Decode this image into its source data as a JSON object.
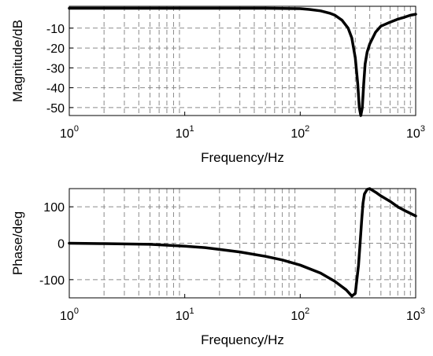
{
  "chart_data": [
    {
      "type": "line",
      "xlabel": "Frequency/Hz",
      "ylabel": "Magnitude/dB",
      "x_scale": "log",
      "xlim": [
        1,
        1000
      ],
      "ylim": [
        -54,
        1
      ],
      "x_ticks": [
        {
          "base": "10",
          "exp": "0"
        },
        {
          "base": "10",
          "exp": "1"
        },
        {
          "base": "10",
          "exp": "2"
        },
        {
          "base": "10",
          "exp": "3"
        }
      ],
      "y_ticks": [
        -10,
        -20,
        -30,
        -40,
        -50
      ],
      "grid": true,
      "series": [
        {
          "x": [
            1,
            10,
            50,
            100,
            120,
            150,
            180,
            200,
            230,
            260,
            280,
            300,
            315,
            325,
            335,
            345,
            355,
            365,
            380,
            400,
            450,
            500,
            600,
            700,
            800,
            900,
            1000
          ],
          "y": [
            0,
            0,
            0,
            -0.2,
            -0.6,
            -1.3,
            -2.5,
            -3.5,
            -6,
            -10,
            -15,
            -25,
            -38,
            -50,
            -54,
            -50,
            -38,
            -28,
            -22,
            -18,
            -12,
            -9,
            -7,
            -5.5,
            -4.5,
            -3.5,
            -3
          ]
        }
      ]
    },
    {
      "type": "line",
      "xlabel": "Frequency/Hz",
      "ylabel": "Phase/deg",
      "x_scale": "log",
      "xlim": [
        1,
        1000
      ],
      "ylim": [
        -150,
        150
      ],
      "x_ticks": [
        {
          "base": "10",
          "exp": "0"
        },
        {
          "base": "10",
          "exp": "1"
        },
        {
          "base": "10",
          "exp": "2"
        },
        {
          "base": "10",
          "exp": "3"
        }
      ],
      "y_ticks": [
        100,
        0,
        -100
      ],
      "grid": true,
      "series": [
        {
          "x": [
            1,
            2,
            5,
            10,
            15,
            20,
            30,
            50,
            70,
            100,
            150,
            200,
            250,
            280,
            300,
            320,
            330,
            340,
            350,
            360,
            380,
            400,
            450,
            500,
            600,
            700,
            800,
            900,
            1000
          ],
          "y": [
            0,
            -1,
            -3,
            -8,
            -12,
            -17,
            -24,
            -36,
            -46,
            -60,
            -82,
            -105,
            -128,
            -145,
            -138,
            -60,
            0,
            60,
            110,
            135,
            148,
            150,
            140,
            130,
            115,
            100,
            90,
            82,
            75
          ]
        }
      ]
    }
  ]
}
